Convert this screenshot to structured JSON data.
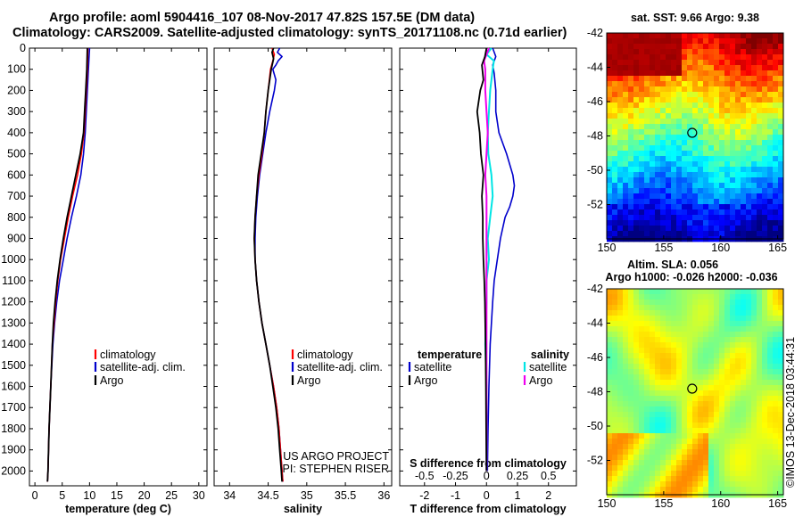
{
  "header": {
    "line1": "Argo profile: aoml 5904416_107 08-Nov-2017 47.82S 157.5E (DM data)",
    "line2": "Climatology: CARS2009. Satellite-adjusted climatology: synTS_20171108.nc (0.71d earlier)"
  },
  "colors": {
    "climatology": "#ff0000",
    "satellite": "#0000cc",
    "argo": "#000000",
    "sat_salinity": "#00e5e5",
    "argo_salinity": "#ee00ee"
  },
  "chart_data": [
    {
      "type": "line",
      "title": "",
      "xlabel": "temperature (deg C)",
      "ylabel": "",
      "xlim": [
        -1,
        31.5
      ],
      "ylim": [
        2070,
        0
      ],
      "xticks": [
        "0",
        "5",
        "10",
        "15",
        "20",
        "25",
        "30"
      ],
      "xtick_values": [
        0,
        5,
        10,
        15,
        20,
        25,
        30
      ],
      "yticks": [
        "0",
        "100",
        "200",
        "300",
        "400",
        "500",
        "600",
        "700",
        "800",
        "900",
        "1000",
        "1100",
        "1200",
        "1300",
        "1400",
        "1500",
        "1600",
        "1700",
        "1800",
        "1900",
        "2000"
      ],
      "ytick_values": [
        0,
        100,
        200,
        300,
        400,
        500,
        600,
        700,
        800,
        900,
        1000,
        1100,
        1200,
        1300,
        1400,
        1500,
        1600,
        1700,
        1800,
        1900,
        2000
      ],
      "legend": [
        "climatology",
        "satellite-adj. clim.",
        "Argo"
      ],
      "series": [
        {
          "name": "climatology",
          "depth": [
            0,
            100,
            200,
            300,
            400,
            500,
            600,
            700,
            800,
            900,
            1000,
            1100,
            1200,
            1300,
            1400,
            1600,
            1800,
            2000,
            2050
          ],
          "values": [
            9.7,
            9.6,
            9.4,
            9.2,
            9.0,
            8.5,
            7.8,
            6.9,
            6.1,
            5.4,
            4.7,
            4.2,
            3.8,
            3.5,
            3.2,
            2.9,
            2.6,
            2.4,
            2.3
          ]
        },
        {
          "name": "satellite-adj. clim.",
          "depth": [
            0,
            50,
            100,
            200,
            300,
            400,
            500,
            600,
            700,
            800,
            900,
            1000,
            1100,
            1200,
            1300,
            1400,
            1600,
            1800,
            2000,
            2050
          ],
          "values": [
            10.0,
            9.9,
            9.8,
            9.6,
            9.4,
            9.2,
            8.9,
            8.4,
            7.6,
            6.7,
            5.9,
            5.2,
            4.5,
            4.0,
            3.6,
            3.3,
            2.9,
            2.6,
            2.4,
            2.3
          ]
        },
        {
          "name": "Argo",
          "depth": [
            0,
            100,
            200,
            300,
            400,
            500,
            600,
            700,
            800,
            900,
            1000,
            1100,
            1200,
            1300,
            1400,
            1600,
            1800,
            2000,
            2050
          ],
          "values": [
            9.6,
            9.5,
            9.3,
            9.1,
            8.9,
            8.3,
            7.5,
            6.7,
            5.9,
            5.2,
            4.6,
            4.1,
            3.7,
            3.4,
            3.2,
            2.9,
            2.6,
            2.4,
            2.3
          ]
        }
      ]
    },
    {
      "type": "line",
      "xlabel": "salinity",
      "xlim": [
        33.8,
        36.1
      ],
      "ylim": [
        2070,
        0
      ],
      "xticks": [
        "34",
        "34.5",
        "35",
        "35.5",
        "36"
      ],
      "xtick_values": [
        34,
        34.5,
        35,
        35.5,
        36
      ],
      "legend": [
        "climatology",
        "satellite-adj. clim.",
        "Argo"
      ],
      "annotation": [
        "US ARGO PROJECT",
        "PI: STEPHEN RISER"
      ],
      "series": [
        {
          "name": "climatology",
          "depth": [
            0,
            30,
            60,
            100,
            200,
            300,
            400,
            500,
            600,
            700,
            800,
            900,
            1000,
            1100,
            1200,
            1300,
            1400,
            1500,
            1600,
            1700,
            1800,
            1900,
            2000,
            2050
          ],
          "values": [
            34.55,
            34.58,
            34.56,
            34.53,
            34.5,
            34.47,
            34.45,
            34.42,
            34.38,
            34.35,
            34.33,
            34.32,
            34.33,
            34.35,
            34.38,
            34.42,
            34.47,
            34.52,
            34.57,
            34.61,
            34.64,
            34.66,
            34.68,
            34.69
          ]
        },
        {
          "name": "satellite-adj. clim.",
          "depth": [
            0,
            20,
            40,
            60,
            80,
            100,
            150,
            200,
            300,
            400,
            500,
            600,
            700,
            800,
            900,
            1000,
            1100,
            1200,
            1300,
            1400,
            1500,
            1600,
            1700,
            1800,
            1900,
            2000,
            2050
          ],
          "values": [
            34.65,
            34.62,
            34.68,
            34.63,
            34.6,
            34.56,
            34.6,
            34.58,
            34.52,
            34.47,
            34.43,
            34.39,
            34.36,
            34.34,
            34.33,
            34.33,
            34.35,
            34.38,
            34.42,
            34.47,
            34.52,
            34.57,
            34.61,
            34.64,
            34.66,
            34.68,
            34.69
          ]
        },
        {
          "name": "Argo",
          "depth": [
            0,
            20,
            50,
            100,
            200,
            300,
            400,
            500,
            600,
            700,
            800,
            900,
            1000,
            1100,
            1200,
            1300,
            1400,
            1500,
            1600,
            1700,
            1800,
            1900,
            2000,
            2050
          ],
          "values": [
            34.57,
            34.55,
            34.57,
            34.54,
            34.5,
            34.47,
            34.45,
            34.41,
            34.37,
            34.35,
            34.33,
            34.32,
            34.33,
            34.35,
            34.38,
            34.42,
            34.47,
            34.52,
            34.56,
            34.6,
            34.63,
            34.65,
            34.67,
            34.68
          ]
        }
      ]
    },
    {
      "type": "line",
      "xlabel": "T difference from climatology",
      "xlabel_top": "S difference from climatology",
      "xlim": [
        -2.8,
        2.9
      ],
      "ylim": [
        2070,
        0
      ],
      "xticks": [
        "-2",
        "-1",
        "0",
        "1",
        "2"
      ],
      "xtick_values": [
        -2,
        -1,
        0,
        1,
        2
      ],
      "xticks_top": [
        "-0.5",
        "-0.25",
        "0",
        "0.25",
        "0.5"
      ],
      "xtick_top_values": [
        -0.5,
        -0.25,
        0,
        0.25,
        0.5
      ],
      "legend_left_title": "temperature",
      "legend_right_title": "salinity",
      "legend_left": [
        "satellite",
        "Argo"
      ],
      "legend_right": [
        "satellite",
        "Argo"
      ],
      "series": [
        {
          "name": "T satellite",
          "depth": [
            0,
            40,
            80,
            120,
            200,
            300,
            400,
            500,
            550,
            600,
            650,
            700,
            750,
            800,
            900,
            1000,
            1100,
            1200,
            1400,
            1600,
            1800,
            2000
          ],
          "values": [
            0.2,
            0.3,
            0.2,
            0.25,
            0.3,
            0.3,
            0.4,
            0.65,
            0.75,
            0.85,
            0.9,
            0.85,
            0.75,
            0.6,
            0.45,
            0.35,
            0.25,
            0.2,
            0.12,
            0.08,
            0.05,
            0.03
          ]
        },
        {
          "name": "T Argo",
          "depth": [
            0,
            40,
            80,
            150,
            200,
            300,
            400,
            500,
            600,
            700,
            800,
            900,
            1000,
            1100,
            1200,
            1400,
            1600,
            1800,
            2000
          ],
          "values": [
            0.0,
            -0.05,
            -0.15,
            -0.1,
            -0.2,
            -0.3,
            -0.22,
            -0.18,
            -0.1,
            -0.15,
            -0.12,
            -0.12,
            -0.1,
            -0.07,
            -0.05,
            -0.03,
            -0.02,
            -0.01,
            0.0
          ]
        },
        {
          "name": "S satellite",
          "depth": [
            0,
            30,
            60,
            100,
            150,
            200,
            300,
            400,
            500,
            600,
            700,
            800,
            900,
            1000,
            1100,
            1200,
            1400,
            1600,
            1800,
            2000
          ],
          "values": [
            0.04,
            0.0,
            0.06,
            0.05,
            0.04,
            0.03,
            0.02,
            0.01,
            0.015,
            0.04,
            0.05,
            0.03,
            0.01,
            0.02,
            0.0,
            0.0,
            -0.01,
            0.0,
            0.0,
            0.0
          ]
        },
        {
          "name": "S Argo",
          "depth": [
            0,
            30,
            60,
            100,
            200,
            300,
            400,
            500,
            600,
            700,
            800,
            900,
            1000,
            1200,
            1400,
            1600,
            1800,
            2000
          ],
          "values": [
            0.02,
            0.0,
            -0.02,
            -0.01,
            -0.01,
            0.0,
            0.01,
            0.0,
            -0.01,
            0.0,
            0.0,
            0.0,
            0.0,
            0.0,
            0.0,
            0.0,
            0.0,
            0.0
          ]
        }
      ]
    },
    {
      "type": "heatmap",
      "title": "sat. SST: 9.66  Argo: 9.38",
      "xticks": [
        "150",
        "155",
        "160",
        "165"
      ],
      "xtick_values": [
        150,
        155,
        160,
        165
      ],
      "yticks": [
        "-42",
        "-44",
        "-46",
        "-48",
        "-50",
        "-52"
      ],
      "ytick_values": [
        -42,
        -44,
        -46,
        -48,
        -50,
        -52
      ],
      "xlim": [
        150,
        165.5
      ],
      "ylim": [
        -54,
        -42
      ],
      "marker": [
        157.5,
        -47.82
      ]
    },
    {
      "type": "heatmap",
      "title": "Altim. SLA: 0.056",
      "subtitle": "Argo h1000: -0.026 h2000: -0.036",
      "xticks": [
        "150",
        "155",
        "160",
        "165"
      ],
      "xtick_values": [
        150,
        155,
        160,
        165
      ],
      "yticks": [
        "-42",
        "-44",
        "-46",
        "-48",
        "-50",
        "-52"
      ],
      "ytick_values": [
        -42,
        -44,
        -46,
        -48,
        -50,
        -52
      ],
      "xlim": [
        150,
        165.5
      ],
      "ylim": [
        -54,
        -42
      ],
      "marker": [
        157.5,
        -47.82
      ],
      "watermark": "©IMOS 13-Dec-2018 03:44:31"
    }
  ]
}
